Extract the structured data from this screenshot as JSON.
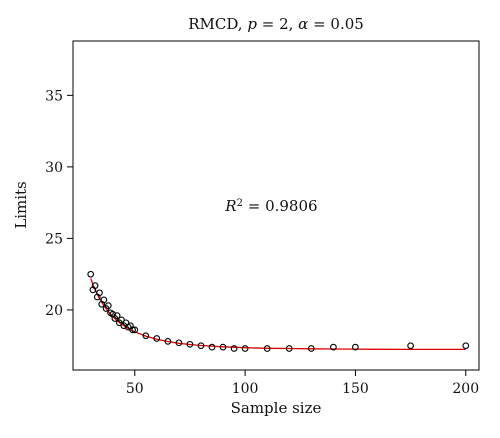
{
  "chart_data": {
    "type": "scatter",
    "title": {
      "prefix": "RMCD, ",
      "p_symbol": "p",
      "p_eq": " = 2, ",
      "alpha_symbol": "α",
      "alpha_eq": " = 0.05"
    },
    "xlabel": "Sample size",
    "ylabel": "Limits",
    "xlim": [
      22,
      206
    ],
    "ylim": [
      15.8,
      38.8
    ],
    "xticks": [
      50,
      100,
      150,
      200
    ],
    "yticks": [
      20,
      25,
      30,
      35
    ],
    "xtick_labels": [
      "50",
      "100",
      "150",
      "200"
    ],
    "ytick_labels": [
      "20",
      "25",
      "30",
      "35"
    ],
    "grid": false,
    "annotation": {
      "r_symbol": "R",
      "r_sup": "2",
      "value_text": " = 0.9806",
      "x": 91,
      "y": 26.9
    },
    "points": {
      "name": "",
      "color": "#000000",
      "x": [
        30,
        31,
        32,
        33,
        34,
        35,
        36,
        37,
        38,
        39,
        40,
        41,
        42,
        43,
        44,
        45,
        46,
        47,
        48,
        49,
        50,
        55,
        60,
        65,
        70,
        75,
        80,
        85,
        90,
        95,
        100,
        110,
        120,
        130,
        140,
        150,
        175,
        200
      ],
      "y": [
        22.5,
        21.4,
        21.7,
        20.9,
        21.2,
        20.4,
        20.7,
        20.1,
        20.3,
        19.8,
        19.7,
        19.4,
        19.6,
        19.1,
        19.3,
        18.9,
        19.1,
        18.8,
        18.9,
        18.6,
        18.6,
        18.2,
        18.0,
        17.8,
        17.7,
        17.6,
        17.5,
        17.4,
        17.4,
        17.3,
        17.3,
        17.3,
        17.3,
        17.3,
        17.4,
        17.4,
        17.5,
        17.5
      ]
    },
    "fit": {
      "name": "",
      "color": "#e00000",
      "x": [
        30,
        32,
        34,
        36,
        38,
        40,
        42,
        44,
        46,
        48,
        50,
        55,
        60,
        65,
        70,
        75,
        80,
        90,
        100,
        110,
        120,
        130,
        140,
        150,
        160,
        175,
        190,
        200
      ],
      "y": [
        22.2,
        21.4,
        20.8,
        20.3,
        19.9,
        19.55,
        19.25,
        19.0,
        18.8,
        18.62,
        18.47,
        18.17,
        17.95,
        17.79,
        17.67,
        17.58,
        17.51,
        17.42,
        17.36,
        17.32,
        17.3,
        17.28,
        17.27,
        17.26,
        17.25,
        17.24,
        17.24,
        17.24
      ]
    }
  }
}
